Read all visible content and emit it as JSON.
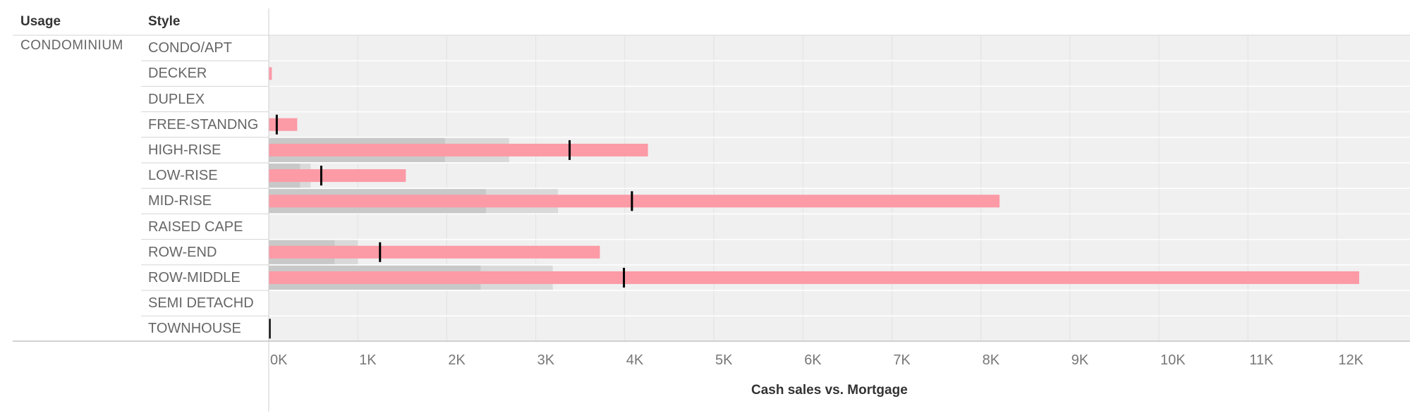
{
  "headers": {
    "usage": "Usage",
    "style": "Style"
  },
  "usage_value": "CONDOMINIUM",
  "chart_data": {
    "type": "bar",
    "subtype": "bullet",
    "xlabel": "Cash sales vs. Mortgage",
    "xlim": [
      0,
      12900
    ],
    "xticks": [
      {
        "value": 0,
        "label": "0K"
      },
      {
        "value": 1000,
        "label": "1K"
      },
      {
        "value": 2000,
        "label": "2K"
      },
      {
        "value": 3000,
        "label": "3K"
      },
      {
        "value": 4000,
        "label": "4K"
      },
      {
        "value": 5000,
        "label": "5K"
      },
      {
        "value": 6000,
        "label": "6K"
      },
      {
        "value": 7000,
        "label": "7K"
      },
      {
        "value": 8000,
        "label": "8K"
      },
      {
        "value": 9000,
        "label": "9K"
      },
      {
        "value": 10000,
        "label": "10K"
      },
      {
        "value": 11000,
        "label": "11K"
      },
      {
        "value": 12000,
        "label": "12K"
      }
    ],
    "grid": true,
    "categories": [
      "CONDO/APT",
      "DECKER",
      "DUPLEX",
      "FREE-STANDNG",
      "HIGH-RISE",
      "LOW-RISE",
      "MID-RISE",
      "RAISED CAPE",
      "ROW-END",
      "ROW-MIDDLE",
      "SEMI DETACHD",
      "TOWNHOUSE"
    ],
    "series": [
      {
        "values": [
          0,
          35,
          0,
          320,
          4260,
          1540,
          8210,
          0,
          3720,
          12250,
          0,
          0
        ],
        "color": "#fc9aa6"
      },
      {
        "values": [
          0,
          0,
          0,
          90,
          3380,
          590,
          4080,
          0,
          1250,
          3990,
          0,
          10
        ],
        "color": "#000000"
      }
    ],
    "reference_bands": [
      {
        "band1": [
          0,
          0,
          0,
          0,
          1980,
          350,
          2440,
          0,
          740,
          2380,
          0,
          0
        ],
        "band2": [
          0,
          0,
          0,
          0,
          2700,
          470,
          3250,
          0,
          1000,
          3190,
          0,
          0
        ]
      }
    ],
    "colors": {
      "band_dark": "#c8c8c8",
      "band_light": "#d9d9d9",
      "background": "#f0f0f0"
    }
  }
}
